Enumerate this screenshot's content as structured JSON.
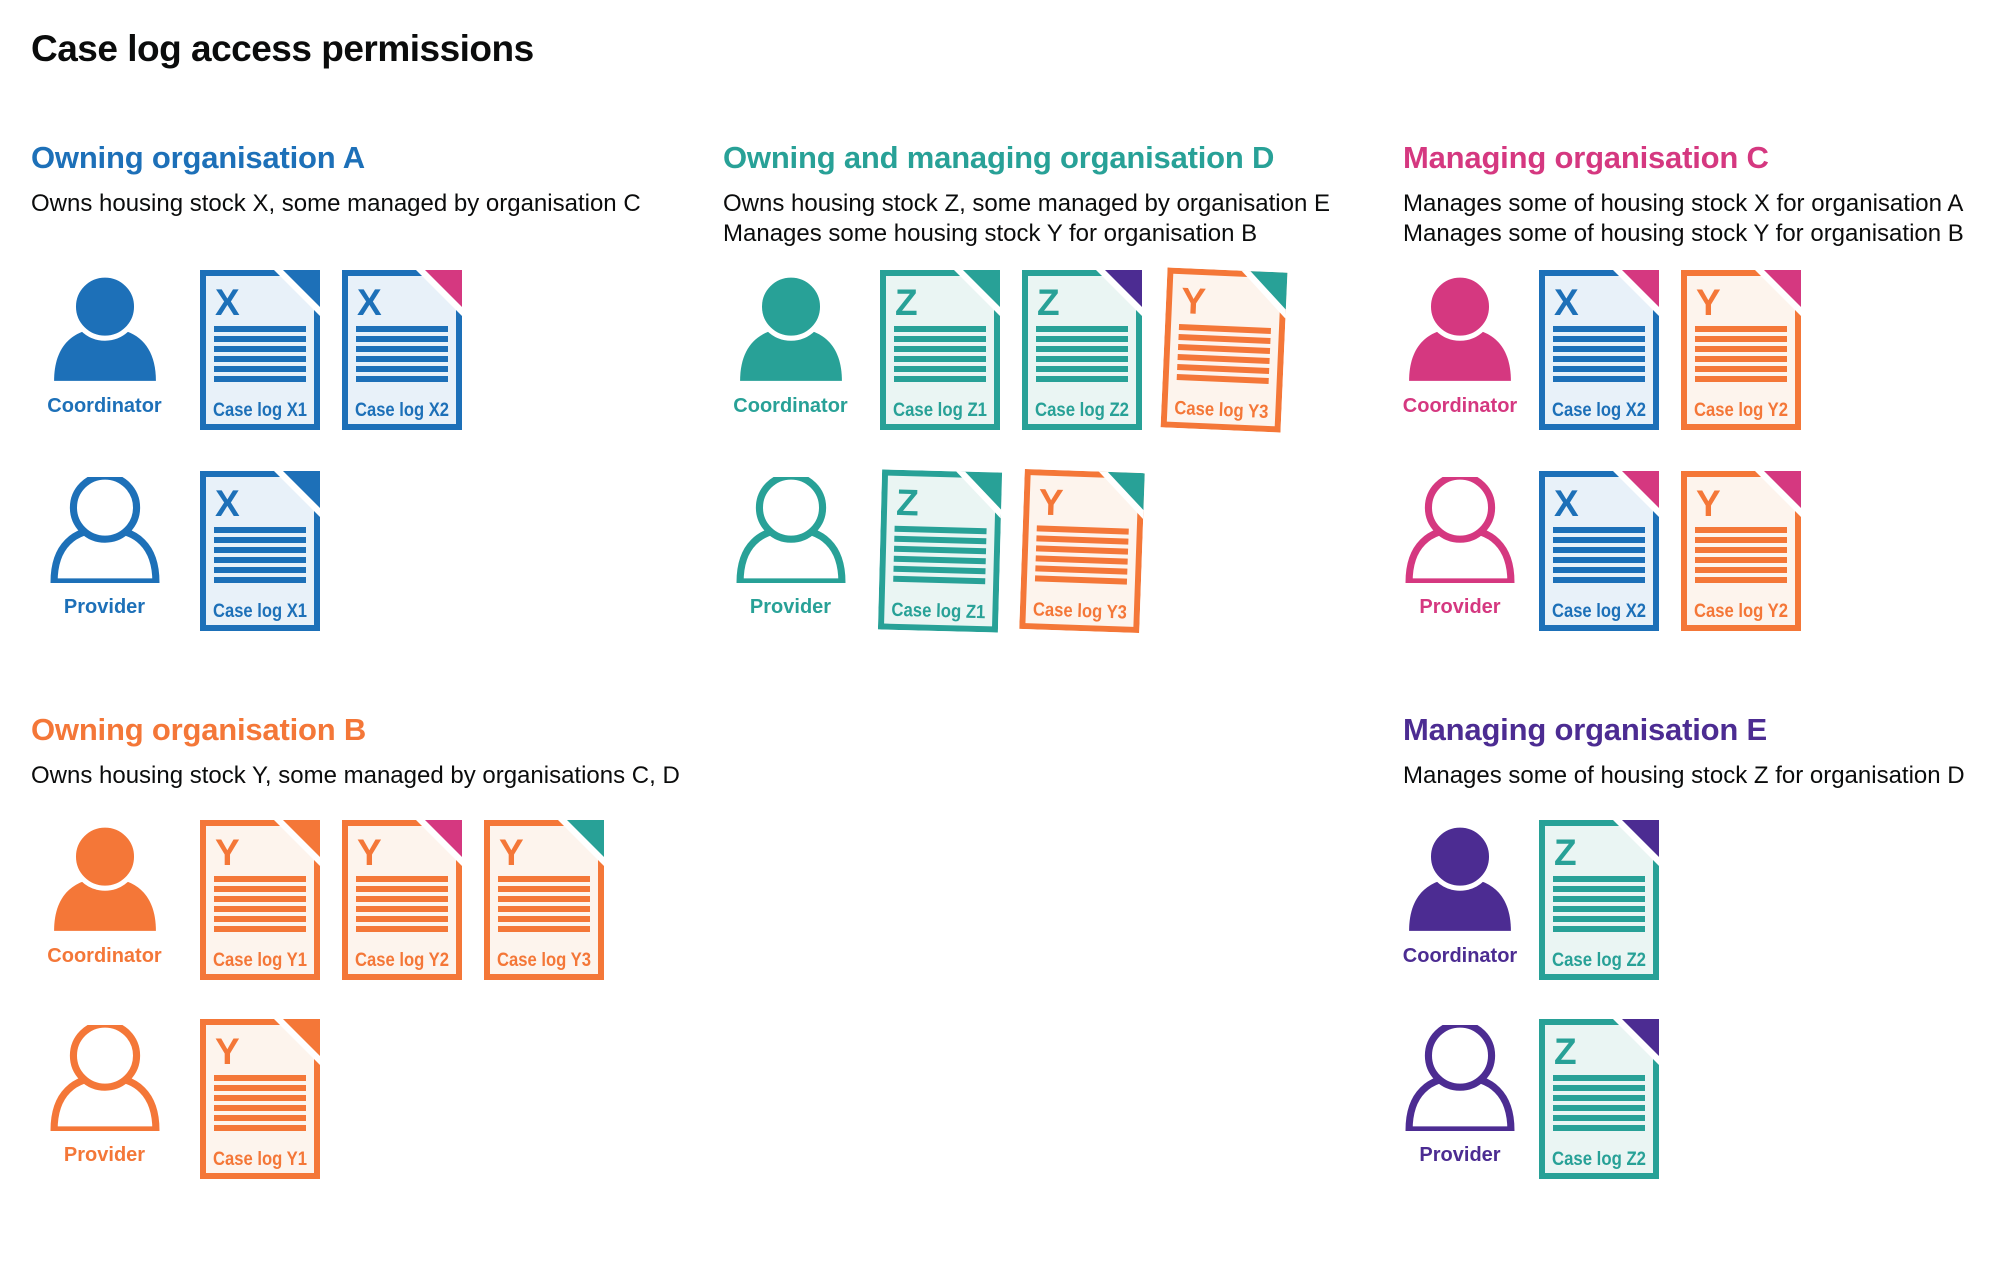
{
  "page_title": "Case log access permissions",
  "colors": {
    "blue": "#1d70b8",
    "teal": "#28a197",
    "orange": "#f47738",
    "pink": "#d53880",
    "purple": "#4c2c92",
    "text": "#0b0c0c",
    "blue_fill": "#e8f1f9",
    "teal_fill": "#eaf5f3",
    "orange_fill": "#fdf4ed"
  },
  "icons": {
    "person_filled": "coordinator-person-icon",
    "person_outline": "provider-person-icon",
    "document": "case-log-document-icon",
    "folded_corner": "folded-corner"
  },
  "sections": [
    {
      "id": "org-a",
      "title": "Owning organisation A",
      "color": "blue",
      "description_lines": [
        "Owns housing stock X, some managed by organisation C"
      ],
      "rows": [
        {
          "role": "Coordinator",
          "person_style": "filled",
          "docs": [
            {
              "letter": "X",
              "label": "Case log X1",
              "doc_color": "blue",
              "fold_color": "blue",
              "tilt": 0
            },
            {
              "letter": "X",
              "label": "Case log X2",
              "doc_color": "blue",
              "fold_color": "pink",
              "tilt": 0
            }
          ]
        },
        {
          "role": "Provider",
          "person_style": "outline",
          "docs": [
            {
              "letter": "X",
              "label": "Case log X1",
              "doc_color": "blue",
              "fold_color": "blue",
              "tilt": 0
            }
          ]
        }
      ]
    },
    {
      "id": "org-d",
      "title": "Owning and managing organisation D",
      "color": "teal",
      "description_lines": [
        "Owns housing stock Z, some managed by organisation E",
        "Manages some housing stock Y for organisation B"
      ],
      "rows": [
        {
          "role": "Coordinator",
          "person_style": "filled",
          "docs": [
            {
              "letter": "Z",
              "label": "Case log Z1",
              "doc_color": "teal",
              "fold_color": "teal",
              "tilt": 0
            },
            {
              "letter": "Z",
              "label": "Case log Z2",
              "doc_color": "teal",
              "fold_color": "purple",
              "tilt": 0
            },
            {
              "letter": "Y",
              "label": "Case log Y3",
              "doc_color": "orange",
              "fold_color": "teal",
              "tilt": 2.5
            }
          ]
        },
        {
          "role": "Provider",
          "person_style": "outline",
          "docs": [
            {
              "letter": "Z",
              "label": "Case log Z1",
              "doc_color": "teal",
              "fold_color": "teal",
              "tilt": 1.5
            },
            {
              "letter": "Y",
              "label": "Case log Y3",
              "doc_color": "orange",
              "fold_color": "teal",
              "tilt": 2
            }
          ]
        }
      ]
    },
    {
      "id": "org-c",
      "title": "Managing organisation C",
      "color": "pink",
      "description_lines": [
        "Manages some of housing stock X for organisation A",
        "Manages some of housing stock Y for organisation B"
      ],
      "rows": [
        {
          "role": "Coordinator",
          "person_style": "filled",
          "docs": [
            {
              "letter": "X",
              "label": "Case log X2",
              "doc_color": "blue",
              "fold_color": "pink",
              "tilt": 0
            },
            {
              "letter": "Y",
              "label": "Case log Y2",
              "doc_color": "orange",
              "fold_color": "pink",
              "tilt": 0
            }
          ]
        },
        {
          "role": "Provider",
          "person_style": "outline",
          "docs": [
            {
              "letter": "X",
              "label": "Case log X2",
              "doc_color": "blue",
              "fold_color": "pink",
              "tilt": 0
            },
            {
              "letter": "Y",
              "label": "Case log Y2",
              "doc_color": "orange",
              "fold_color": "pink",
              "tilt": 0
            }
          ]
        }
      ]
    },
    {
      "id": "org-b",
      "title": "Owning organisation B",
      "color": "orange",
      "description_lines": [
        "Owns housing stock Y, some managed by organisations C, D"
      ],
      "rows": [
        {
          "role": "Coordinator",
          "person_style": "filled",
          "docs": [
            {
              "letter": "Y",
              "label": "Case log Y1",
              "doc_color": "orange",
              "fold_color": "orange",
              "tilt": 0
            },
            {
              "letter": "Y",
              "label": "Case log Y2",
              "doc_color": "orange",
              "fold_color": "pink",
              "tilt": 0
            },
            {
              "letter": "Y",
              "label": "Case log Y3",
              "doc_color": "orange",
              "fold_color": "teal",
              "tilt": 0
            }
          ]
        },
        {
          "role": "Provider",
          "person_style": "outline",
          "docs": [
            {
              "letter": "Y",
              "label": "Case log Y1",
              "doc_color": "orange",
              "fold_color": "orange",
              "tilt": 0
            }
          ]
        }
      ]
    },
    {
      "id": "org-e",
      "title": "Managing organisation E",
      "color": "purple",
      "description_lines": [
        "Manages some of housing stock Z for organisation D"
      ],
      "rows": [
        {
          "role": "Coordinator",
          "person_style": "filled",
          "docs": [
            {
              "letter": "Z",
              "label": "Case log Z2",
              "doc_color": "teal",
              "fold_color": "purple",
              "tilt": 0
            }
          ]
        },
        {
          "role": "Provider",
          "person_style": "outline",
          "docs": [
            {
              "letter": "Z",
              "label": "Case log Z2",
              "doc_color": "teal",
              "fold_color": "purple",
              "tilt": 0
            }
          ]
        }
      ]
    }
  ]
}
